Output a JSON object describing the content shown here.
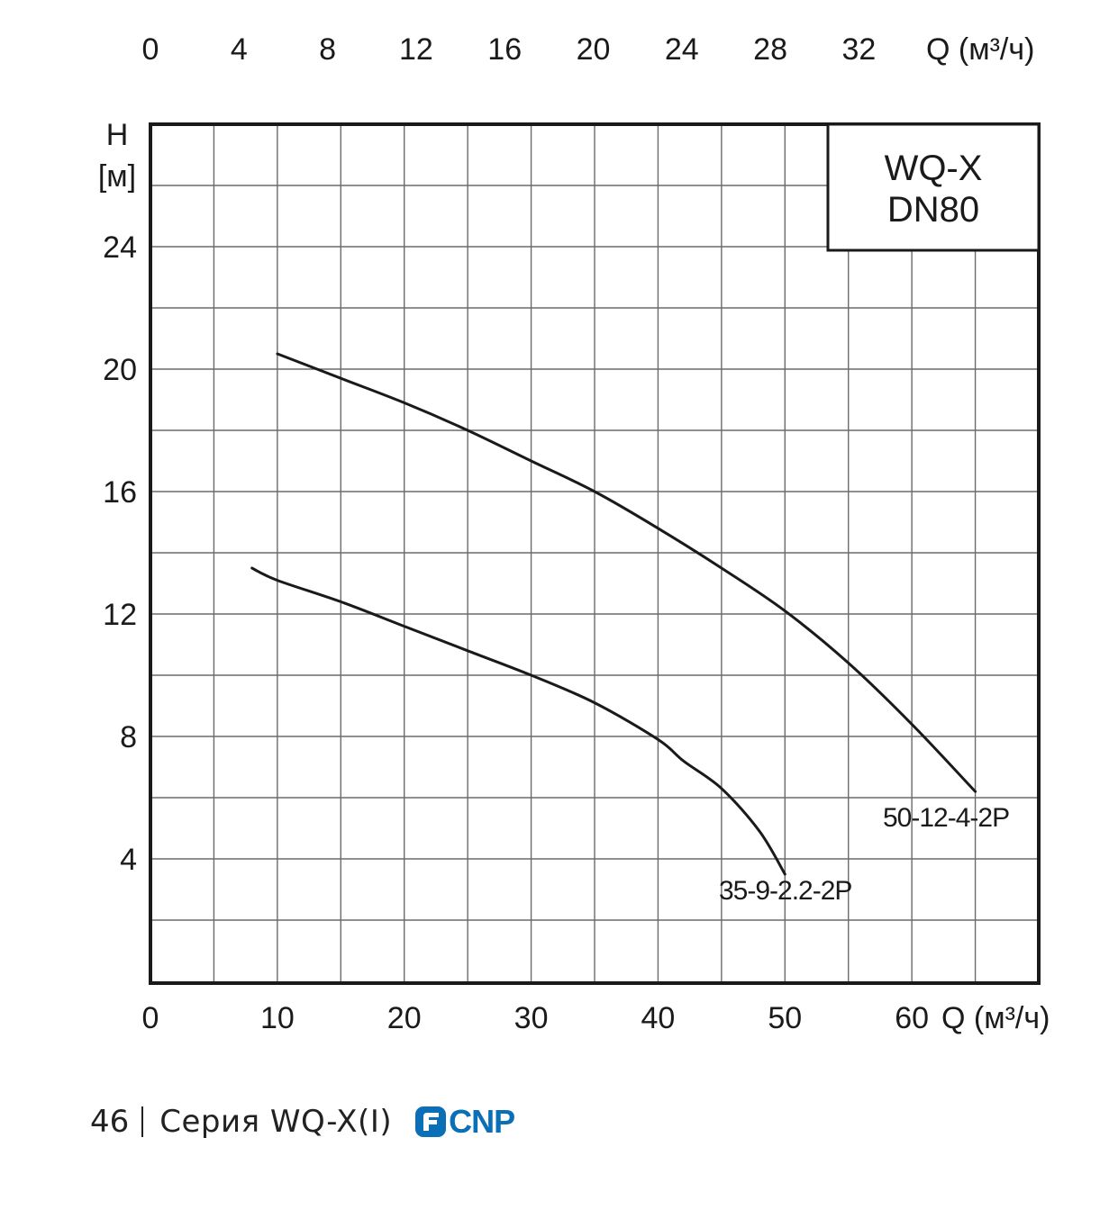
{
  "chart_data": {
    "type": "line",
    "box_title": [
      "WQ-X",
      "DN80"
    ],
    "top_axis": {
      "ticks": [
        "0",
        "4",
        "8",
        "12",
        "16",
        "20",
        "24",
        "28",
        "32"
      ],
      "label": "Q (м³/ч)"
    },
    "bottom_axis": {
      "ticks": [
        "0",
        "10",
        "20",
        "30",
        "40",
        "50",
        "60"
      ],
      "label": "Q (м³/ч)",
      "lim": [
        0,
        70
      ]
    },
    "left_axis": {
      "label_line1": "H",
      "label_line2": "[м]",
      "ticks": [
        "4",
        "8",
        "12",
        "16",
        "20",
        "24"
      ],
      "lim": [
        0,
        28
      ]
    },
    "grid": true,
    "series": [
      {
        "name": "50-12-4-2P",
        "x": [
          10,
          15,
          20,
          25,
          30,
          35,
          40,
          45,
          50,
          55,
          60,
          65
        ],
        "y": [
          20.5,
          19.7,
          18.9,
          18.0,
          17.0,
          16.0,
          14.8,
          13.5,
          12.1,
          10.4,
          8.4,
          6.2
        ]
      },
      {
        "name": "35-9-2.2-2P",
        "x": [
          8,
          10,
          15,
          20,
          25,
          30,
          35,
          40,
          42,
          45,
          48,
          50
        ],
        "y": [
          13.5,
          13.1,
          12.4,
          11.6,
          10.8,
          10.0,
          9.1,
          7.9,
          7.2,
          6.3,
          4.9,
          3.5
        ]
      }
    ]
  },
  "footer": {
    "page_number": "46",
    "series_text": "Серия WQ-X(I)",
    "logo_text": "CNP",
    "logo_color": "#0a6fb7"
  }
}
